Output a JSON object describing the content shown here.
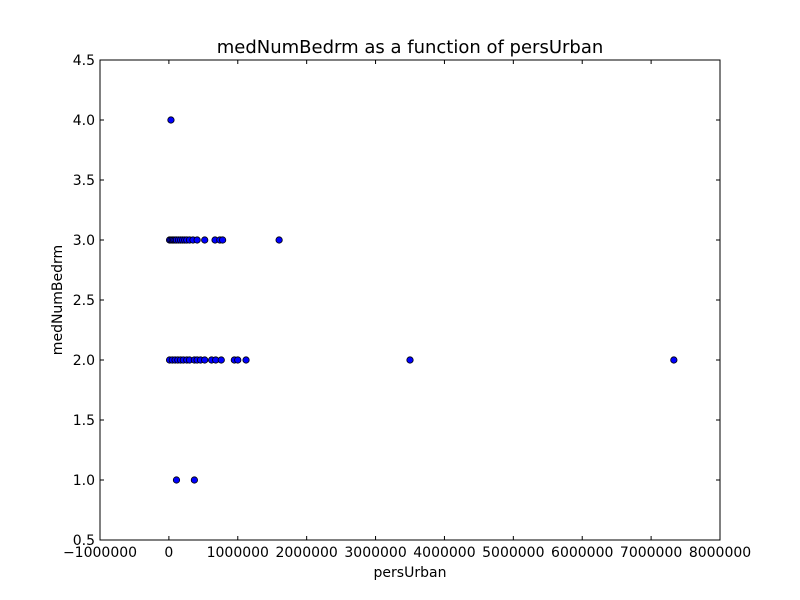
{
  "chart_data": {
    "type": "scatter",
    "title": "medNumBedrm as a function of persUrban",
    "xlabel": "persUrban",
    "ylabel": "medNumBedrm",
    "xlim": [
      -1000000,
      8000000
    ],
    "ylim": [
      0.5,
      4.5
    ],
    "xticks": [
      -1000000,
      0,
      1000000,
      2000000,
      3000000,
      4000000,
      5000000,
      6000000,
      7000000,
      8000000
    ],
    "xtick_labels": [
      "−1000000",
      "0",
      "1000000",
      "2000000",
      "3000000",
      "4000000",
      "5000000",
      "6000000",
      "7000000",
      "8000000"
    ],
    "yticks": [
      0.5,
      1.0,
      1.5,
      2.0,
      2.5,
      3.0,
      3.5,
      4.0,
      4.5
    ],
    "ytick_labels": [
      "0.5",
      "1.0",
      "1.5",
      "2.0",
      "2.5",
      "3.0",
      "3.5",
      "4.0",
      "4.5"
    ],
    "grid": false,
    "marker_color": "#0000ff",
    "marker_edge_color": "#000000",
    "points": [
      {
        "x": 30000,
        "y": 4.0
      },
      {
        "x": 10000,
        "y": 3.0
      },
      {
        "x": 30000,
        "y": 3.0
      },
      {
        "x": 50000,
        "y": 3.0
      },
      {
        "x": 70000,
        "y": 3.0
      },
      {
        "x": 90000,
        "y": 3.0
      },
      {
        "x": 110000,
        "y": 3.0
      },
      {
        "x": 140000,
        "y": 3.0
      },
      {
        "x": 170000,
        "y": 3.0
      },
      {
        "x": 200000,
        "y": 3.0
      },
      {
        "x": 230000,
        "y": 3.0
      },
      {
        "x": 260000,
        "y": 3.0
      },
      {
        "x": 300000,
        "y": 3.0
      },
      {
        "x": 350000,
        "y": 3.0
      },
      {
        "x": 410000,
        "y": 3.0
      },
      {
        "x": 520000,
        "y": 3.0
      },
      {
        "x": 670000,
        "y": 3.0
      },
      {
        "x": 740000,
        "y": 3.0
      },
      {
        "x": 780000,
        "y": 3.0
      },
      {
        "x": 1600000,
        "y": 3.0
      },
      {
        "x": 10000,
        "y": 2.0
      },
      {
        "x": 50000,
        "y": 2.0
      },
      {
        "x": 90000,
        "y": 2.0
      },
      {
        "x": 130000,
        "y": 2.0
      },
      {
        "x": 170000,
        "y": 2.0
      },
      {
        "x": 210000,
        "y": 2.0
      },
      {
        "x": 260000,
        "y": 2.0
      },
      {
        "x": 300000,
        "y": 2.0
      },
      {
        "x": 370000,
        "y": 2.0
      },
      {
        "x": 410000,
        "y": 2.0
      },
      {
        "x": 460000,
        "y": 2.0
      },
      {
        "x": 520000,
        "y": 2.0
      },
      {
        "x": 620000,
        "y": 2.0
      },
      {
        "x": 680000,
        "y": 2.0
      },
      {
        "x": 760000,
        "y": 2.0
      },
      {
        "x": 950000,
        "y": 2.0
      },
      {
        "x": 1000000,
        "y": 2.0
      },
      {
        "x": 1120000,
        "y": 2.0
      },
      {
        "x": 3500000,
        "y": 2.0
      },
      {
        "x": 7330000,
        "y": 2.0
      },
      {
        "x": 110000,
        "y": 1.0
      },
      {
        "x": 370000,
        "y": 1.0
      }
    ]
  }
}
